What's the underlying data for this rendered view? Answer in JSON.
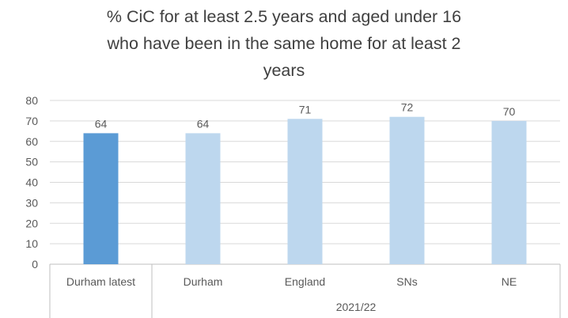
{
  "chart_data": {
    "type": "bar",
    "title_lines": [
      "% CiC for at least 2.5 years and aged under 16",
      "who have been in the same home for at least 2",
      "years"
    ],
    "categories": [
      "Durham latest",
      "Durham",
      "England",
      "SNs",
      "NE"
    ],
    "values": [
      64,
      64,
      71,
      72,
      70
    ],
    "group_label": "2021/22",
    "grouped_categories": [
      "Durham",
      "England",
      "SNs",
      "NE"
    ],
    "bar_colors": [
      "#5b9bd5",
      "#bdd7ee",
      "#bdd7ee",
      "#bdd7ee",
      "#bdd7ee"
    ],
    "ylim": [
      0,
      80
    ],
    "yticks": [
      0,
      10,
      20,
      30,
      40,
      50,
      60,
      70,
      80
    ],
    "grid": true,
    "legend": "none",
    "data_labels": true
  }
}
